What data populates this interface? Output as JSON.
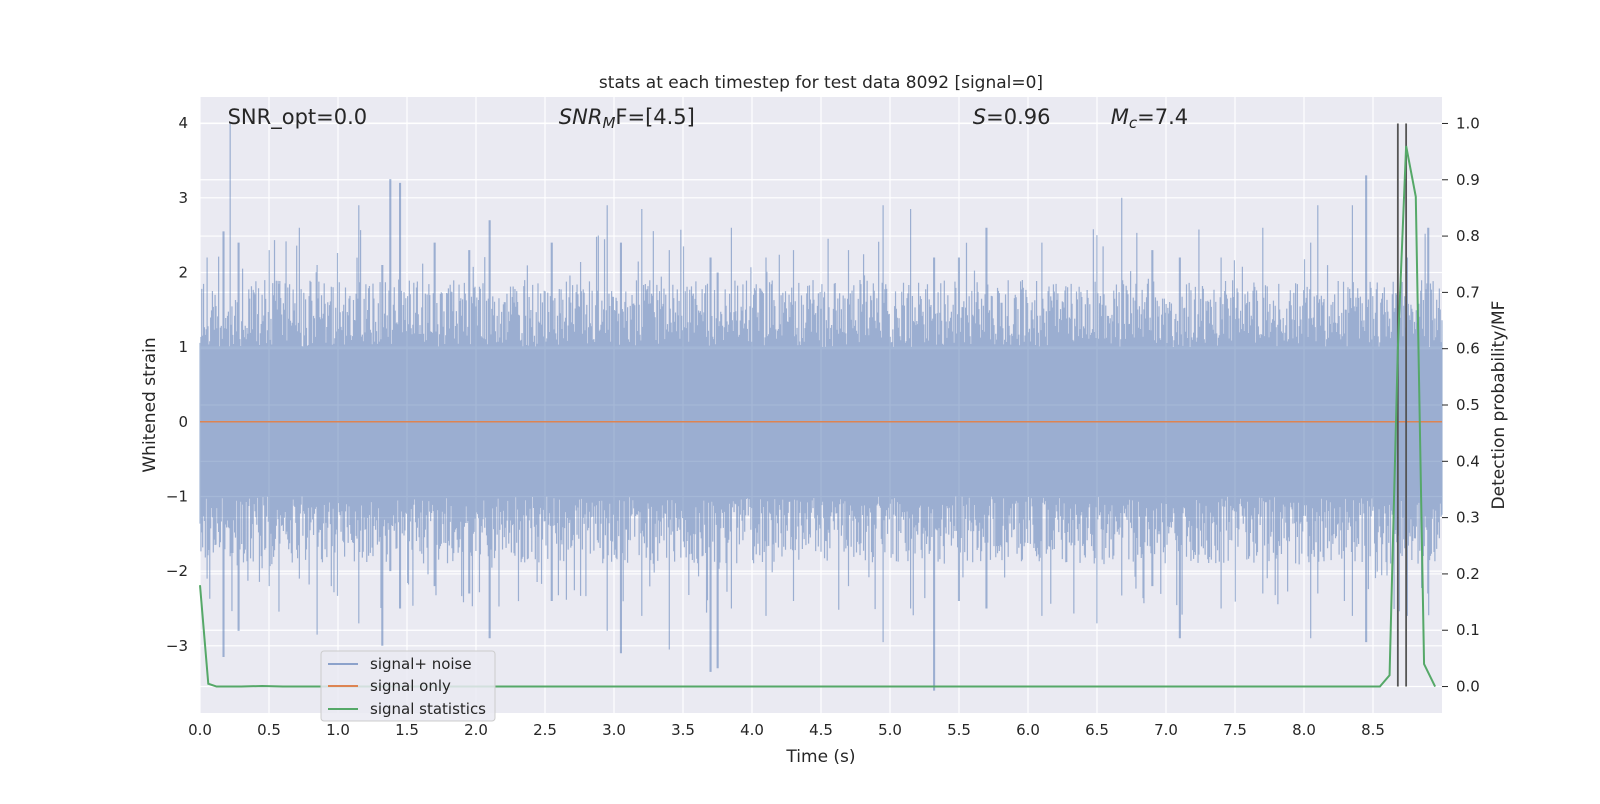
{
  "chart_data": {
    "type": "line",
    "title": "stats at each timestep for test data 8092 [signal=0]",
    "xlabel": "Time (s)",
    "ylabel_left": "Whitened strain",
    "ylabel_right": "Detection probability/MF",
    "xlim": [
      0.0,
      9.0
    ],
    "ylim_left": [
      -3.9,
      4.35
    ],
    "ylim_right": [
      -0.047,
      1.047
    ],
    "x_ticks": [
      0.0,
      0.5,
      1.0,
      1.5,
      2.0,
      2.5,
      3.0,
      3.5,
      4.0,
      4.5,
      5.0,
      5.5,
      6.0,
      6.5,
      7.0,
      7.5,
      8.0,
      8.5
    ],
    "x_tick_labels": [
      "0.0",
      "0.5",
      "1.0",
      "1.5",
      "2.0",
      "2.5",
      "3.0",
      "3.5",
      "4.0",
      "4.5",
      "5.0",
      "5.5",
      "6.0",
      "6.5",
      "7.0",
      "7.5",
      "8.0",
      "8.5"
    ],
    "y_left_ticks": [
      -3,
      -2,
      -1,
      0,
      1,
      2,
      3,
      4
    ],
    "y_left_tick_labels": [
      "−3",
      "−2",
      "−1",
      "0",
      "1",
      "2",
      "3",
      "4"
    ],
    "y_right_ticks": [
      0.0,
      0.1,
      0.2,
      0.3,
      0.4,
      0.5,
      0.6,
      0.7,
      0.8,
      0.9,
      1.0
    ],
    "y_right_tick_labels": [
      "0.0",
      "0.1",
      "0.2",
      "0.3",
      "0.4",
      "0.5",
      "0.6",
      "0.7",
      "0.8",
      "0.9",
      "1.0"
    ],
    "grid": true,
    "legend_position": "lower-left",
    "annotations": [
      {
        "text_parts": [
          {
            "t": "SNR_opt=0.0",
            "i": false
          }
        ],
        "x": 0.2
      },
      {
        "text_parts": [
          {
            "t": "SNR",
            "i": true
          },
          {
            "t": "M",
            "i": true,
            "sub": true
          },
          {
            "t": "F=[4.5]",
            "i": false
          }
        ],
        "x": 2.6
      },
      {
        "text_parts": [
          {
            "t": "S",
            "i": true
          },
          {
            "t": "=0.96",
            "i": false
          }
        ],
        "x": 5.6
      },
      {
        "text_parts": [
          {
            "t": "M",
            "i": true
          },
          {
            "t": "c",
            "i": true,
            "sub": true
          },
          {
            "t": "=7.4",
            "i": false
          }
        ],
        "x": 6.6
      }
    ],
    "series": [
      {
        "name": "signal+ noise",
        "color": "#4c72b0",
        "opacity": 0.5,
        "axis": "left",
        "kind": "noise",
        "envelope_peaks": [
          [
            0.05,
            2.2,
            -2.1
          ],
          [
            0.17,
            2.55,
            -3.15
          ],
          [
            0.22,
            4.0,
            -1.8
          ],
          [
            0.28,
            2.4,
            -2.8
          ],
          [
            0.5,
            2.3,
            -2.2
          ],
          [
            0.72,
            2.6,
            -2.1
          ],
          [
            0.85,
            2.1,
            -2.85
          ],
          [
            0.95,
            1.8,
            -2.2
          ],
          [
            1.15,
            2.9,
            -2.7
          ],
          [
            1.32,
            2.1,
            -3.0
          ],
          [
            1.38,
            3.25,
            -2.0
          ],
          [
            1.45,
            3.2,
            -2.5
          ],
          [
            1.7,
            2.4,
            -2.2
          ],
          [
            1.95,
            2.3,
            -2.3
          ],
          [
            2.1,
            2.7,
            -2.9
          ],
          [
            2.55,
            2.4,
            -2.4
          ],
          [
            2.95,
            2.9,
            -2.8
          ],
          [
            3.05,
            2.4,
            -3.1
          ],
          [
            3.2,
            2.85,
            -2.6
          ],
          [
            3.4,
            2.3,
            -3.05
          ],
          [
            3.7,
            2.2,
            -3.35
          ],
          [
            3.75,
            2.0,
            -3.3
          ],
          [
            3.85,
            2.6,
            -2.5
          ],
          [
            4.1,
            2.2,
            -2.6
          ],
          [
            4.3,
            2.3,
            -2.4
          ],
          [
            4.7,
            2.3,
            -2.2
          ],
          [
            4.95,
            2.9,
            -2.95
          ],
          [
            5.15,
            2.85,
            -2.5
          ],
          [
            5.32,
            2.2,
            -3.6
          ],
          [
            5.5,
            2.2,
            -2.4
          ],
          [
            5.7,
            2.6,
            -2.5
          ],
          [
            6.1,
            2.4,
            -2.6
          ],
          [
            6.5,
            2.5,
            -2.7
          ],
          [
            6.68,
            3.0,
            -2.0
          ],
          [
            6.9,
            2.3,
            -2.2
          ],
          [
            7.1,
            2.2,
            -2.9
          ],
          [
            7.4,
            2.2,
            -2.5
          ],
          [
            7.7,
            2.6,
            -2.3
          ],
          [
            8.05,
            2.4,
            -2.9
          ],
          [
            8.1,
            2.9,
            -2.3
          ],
          [
            8.35,
            2.9,
            -2.6
          ],
          [
            8.45,
            3.3,
            -2.95
          ],
          [
            8.75,
            2.2,
            -2.6
          ],
          [
            8.9,
            2.6,
            -2.3
          ]
        ]
      },
      {
        "name": "signal only",
        "color": "#dd8452",
        "axis": "left",
        "x": [
          0.0,
          9.0
        ],
        "y": [
          0.0,
          0.0
        ]
      },
      {
        "name": "signal statistics",
        "color": "#55a868",
        "axis": "right",
        "x": [
          0.0,
          0.06,
          0.12,
          0.3,
          0.45,
          0.6,
          1.0,
          2.0,
          3.0,
          4.0,
          5.0,
          6.0,
          7.0,
          8.0,
          8.55,
          8.62,
          8.68,
          8.74,
          8.81,
          8.87,
          8.95
        ],
        "y": [
          0.18,
          0.005,
          0.0,
          0.0,
          0.001,
          0.0,
          0.0,
          0.0,
          0.0,
          0.0,
          0.0,
          0.0,
          0.0,
          0.0,
          0.0,
          0.02,
          0.6,
          0.96,
          0.87,
          0.04,
          0.0
        ]
      }
    ],
    "vertical_lines": [
      {
        "x": 8.68,
        "color": "#555555"
      },
      {
        "x": 8.74,
        "color": "#555555"
      }
    ]
  }
}
